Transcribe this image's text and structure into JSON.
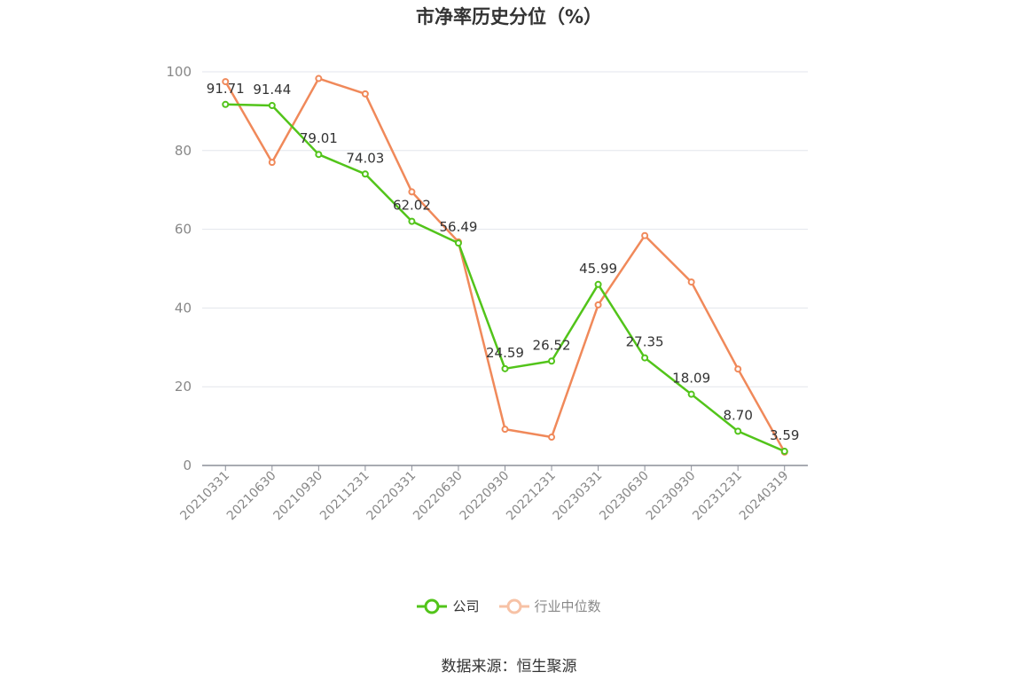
{
  "chart_data": {
    "type": "line",
    "title": "市净率历史分位（%）",
    "categories": [
      "20210331",
      "20210630",
      "20210930",
      "20211231",
      "20220331",
      "20220630",
      "20220930",
      "20221231",
      "20230331",
      "20230630",
      "20230930",
      "20231231",
      "20240319"
    ],
    "series": [
      {
        "name": "公司",
        "color": "#52c41a",
        "values": [
          91.71,
          91.44,
          79.01,
          74.03,
          62.02,
          56.49,
          24.59,
          26.52,
          45.99,
          27.35,
          18.09,
          8.7,
          3.59
        ],
        "labels": [
          "91.71",
          "91.44",
          "79.01",
          "74.03",
          "62.02",
          "56.49",
          "24.59",
          "26.52",
          "45.99",
          "27.35",
          "18.09",
          "8.70",
          "3.59"
        ]
      },
      {
        "name": "行业中位数",
        "color": "#f0895a",
        "values": [
          97.5,
          77.0,
          98.3,
          94.4,
          69.5,
          56.8,
          9.2,
          7.2,
          40.8,
          58.4,
          46.6,
          24.5,
          3.4
        ]
      }
    ],
    "yticks": [
      "0",
      "20",
      "40",
      "60",
      "80",
      "100"
    ],
    "ylim": [
      0,
      100
    ],
    "grid": true,
    "legend_position": "bottom-center"
  },
  "source": "数据来源：恒生聚源"
}
